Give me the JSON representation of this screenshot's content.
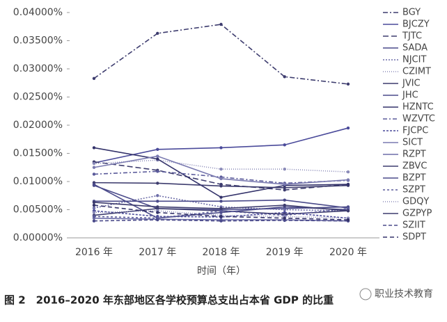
{
  "chart_data": {
    "type": "line",
    "caption": "图 2　2016–2020 年东部地区各学校预算总支出占本省 GDP 的比重",
    "watermark": "职业技术教育",
    "xlabel": "时间（年）",
    "categories": [
      "2016 年",
      "2017 年",
      "2018 年",
      "2019 年",
      "2020 年"
    ],
    "ylim": [
      0,
      0.04
    ],
    "yticks": [
      {
        "value": 0,
        "label": "0.00000%"
      },
      {
        "value": 0.005,
        "label": "0.00500%"
      },
      {
        "value": 0.01,
        "label": "0.01000%"
      },
      {
        "value": 0.015,
        "label": "0.01500%"
      },
      {
        "value": 0.02,
        "label": "0.02000%"
      },
      {
        "value": 0.025,
        "label": "0.02500%"
      },
      {
        "value": 0.03,
        "label": "0.03000%"
      },
      {
        "value": 0.035,
        "label": "0.03500%"
      },
      {
        "value": 0.04,
        "label": "0.04000%"
      }
    ],
    "series": [
      {
        "name": "BGY",
        "color": "#3d3c6e",
        "dash": "7 3 2 3",
        "values": [
          0.0283,
          0.0363,
          0.0379,
          0.0286,
          0.0273
        ]
      },
      {
        "name": "BJCZY",
        "color": "#4a4a9a",
        "dash": "",
        "values": [
          0.0133,
          0.0157,
          0.016,
          0.0165,
          0.0195
        ]
      },
      {
        "name": "TJTC",
        "color": "#3d3c6e",
        "dash": "8 4",
        "values": [
          0.0135,
          0.012,
          0.0095,
          0.0085,
          0.0095
        ]
      },
      {
        "name": "SADA",
        "color": "#4a4a8a",
        "dash": "",
        "values": [
          0.0093,
          0.0052,
          0.005,
          0.0052,
          0.0055
        ]
      },
      {
        "name": "NJCIT",
        "color": "#6d6da8",
        "dash": "2 2",
        "values": [
          0.0053,
          0.0075,
          0.0055,
          0.005,
          0.0048
        ]
      },
      {
        "name": "CZIMT",
        "color": "#8a8ab8",
        "dash": "1 2",
        "values": [
          0.0132,
          0.0138,
          0.0122,
          0.0122,
          0.0117
        ]
      },
      {
        "name": "JVIC",
        "color": "#3d3c6e",
        "dash": "",
        "values": [
          0.0098,
          0.0097,
          0.0092,
          0.0089,
          0.0093
        ]
      },
      {
        "name": "JHC",
        "color": "#4a4a8a",
        "dash": "",
        "values": [
          0.0065,
          0.0065,
          0.0065,
          0.0067,
          0.0053
        ]
      },
      {
        "name": "HZNTC",
        "color": "#33326a",
        "dash": "",
        "values": [
          0.016,
          0.014,
          0.0072,
          0.0093,
          0.0095
        ]
      },
      {
        "name": "WZVTC",
        "color": "#5a5a9a",
        "dash": "6 3 2 3",
        "values": [
          0.0113,
          0.0118,
          0.0108,
          0.0097,
          0.0102
        ]
      },
      {
        "name": "FJCPC",
        "color": "#4a4a9a",
        "dash": "3 2",
        "values": [
          0.0048,
          0.0038,
          0.0037,
          0.0045,
          0.0035
        ]
      },
      {
        "name": "SICT",
        "color": "#7a7ab0",
        "dash": "",
        "values": [
          0.0125,
          0.0145,
          0.0105,
          0.0095,
          0.0103
        ]
      },
      {
        "name": "RZPT",
        "color": "#6d6da8",
        "dash": "",
        "values": [
          0.0035,
          0.0033,
          0.0032,
          0.0032,
          0.003
        ]
      },
      {
        "name": "ZBVC",
        "color": "#3d3c6e",
        "dash": "",
        "values": [
          0.004,
          0.0052,
          0.0048,
          0.0042,
          0.0048
        ]
      },
      {
        "name": "BZPT",
        "color": "#4a4a8a",
        "dash": "",
        "values": [
          0.0095,
          0.0035,
          0.0045,
          0.0055,
          0.005
        ]
      },
      {
        "name": "SZPT",
        "color": "#5a5a9a",
        "dash": "3 3",
        "values": [
          0.0038,
          0.0035,
          0.0048,
          0.004,
          0.0052
        ]
      },
      {
        "name": "GDQY",
        "color": "#8a8ab8",
        "dash": "1 2",
        "values": [
          0.0045,
          0.0048,
          0.004,
          0.0038,
          0.0035
        ]
      },
      {
        "name": "GZPYP",
        "color": "#3d3c6e",
        "dash": "",
        "values": [
          0.0063,
          0.0055,
          0.0052,
          0.0058,
          0.0048
        ]
      },
      {
        "name": "SZIIT",
        "color": "#4a4a8a",
        "dash": "5 3",
        "values": [
          0.003,
          0.0032,
          0.003,
          0.0031,
          0.003
        ]
      },
      {
        "name": "SDPT",
        "color": "#33326a",
        "dash": "6 4",
        "values": [
          0.0058,
          0.0045,
          0.0038,
          0.0035,
          0.0032
        ]
      }
    ]
  }
}
